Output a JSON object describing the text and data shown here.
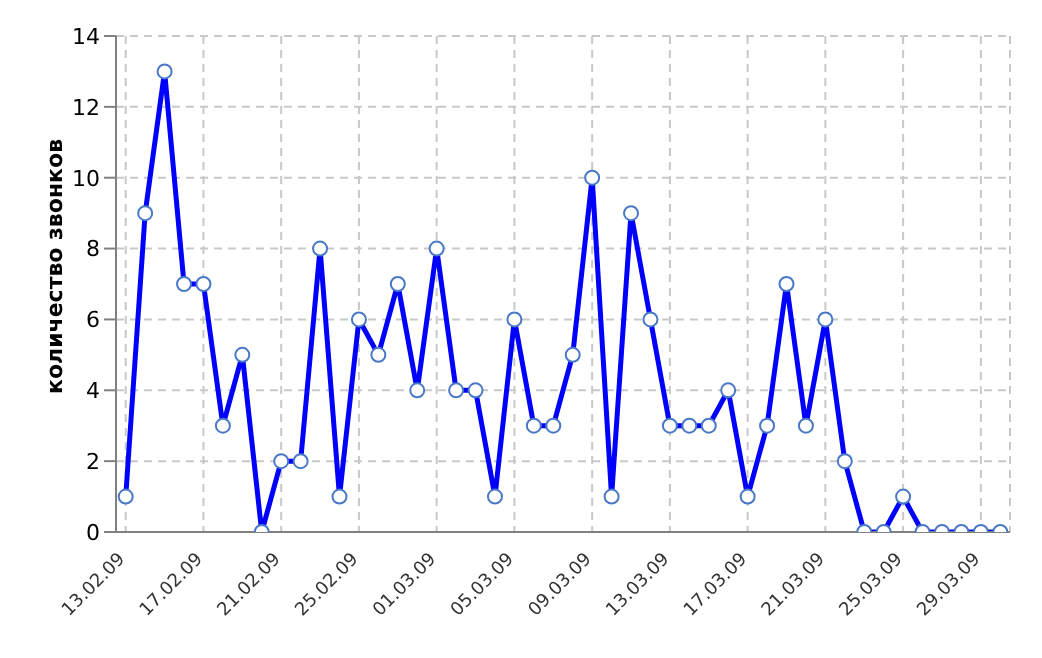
{
  "chart_data": {
    "type": "line",
    "ylabel": "количество звонков",
    "categories": [
      "13.02.09",
      null,
      null,
      null,
      "17.02.09",
      null,
      null,
      null,
      "21.02.09",
      null,
      null,
      null,
      "25.02.09",
      null,
      null,
      null,
      "01.03.09",
      null,
      null,
      null,
      "05.03.09",
      null,
      null,
      null,
      "09.03.09",
      null,
      null,
      null,
      "13.03.09",
      null,
      null,
      null,
      "17.03.09",
      null,
      null,
      null,
      "21.03.09",
      null,
      null,
      null,
      "25.03.09",
      null,
      null,
      null,
      "29.03.09",
      null
    ],
    "series": [
      {
        "color": "#0000ff",
        "values": [
          1,
          9,
          13,
          7,
          7,
          3,
          5,
          0,
          2,
          2,
          8,
          1,
          6,
          5,
          7,
          4,
          8,
          4,
          4,
          1,
          6,
          3,
          3,
          5,
          10,
          1,
          9,
          6,
          3,
          3,
          3,
          4,
          1,
          3,
          7,
          3,
          6,
          2,
          0,
          0,
          1,
          0,
          0,
          0,
          0,
          0
        ]
      }
    ],
    "ylim": [
      0,
      14
    ],
    "yticks": [
      0,
      2,
      4,
      6,
      8,
      10,
      12,
      14
    ],
    "grid": true,
    "legend": false,
    "marker": "circle",
    "line_style": "solid"
  }
}
